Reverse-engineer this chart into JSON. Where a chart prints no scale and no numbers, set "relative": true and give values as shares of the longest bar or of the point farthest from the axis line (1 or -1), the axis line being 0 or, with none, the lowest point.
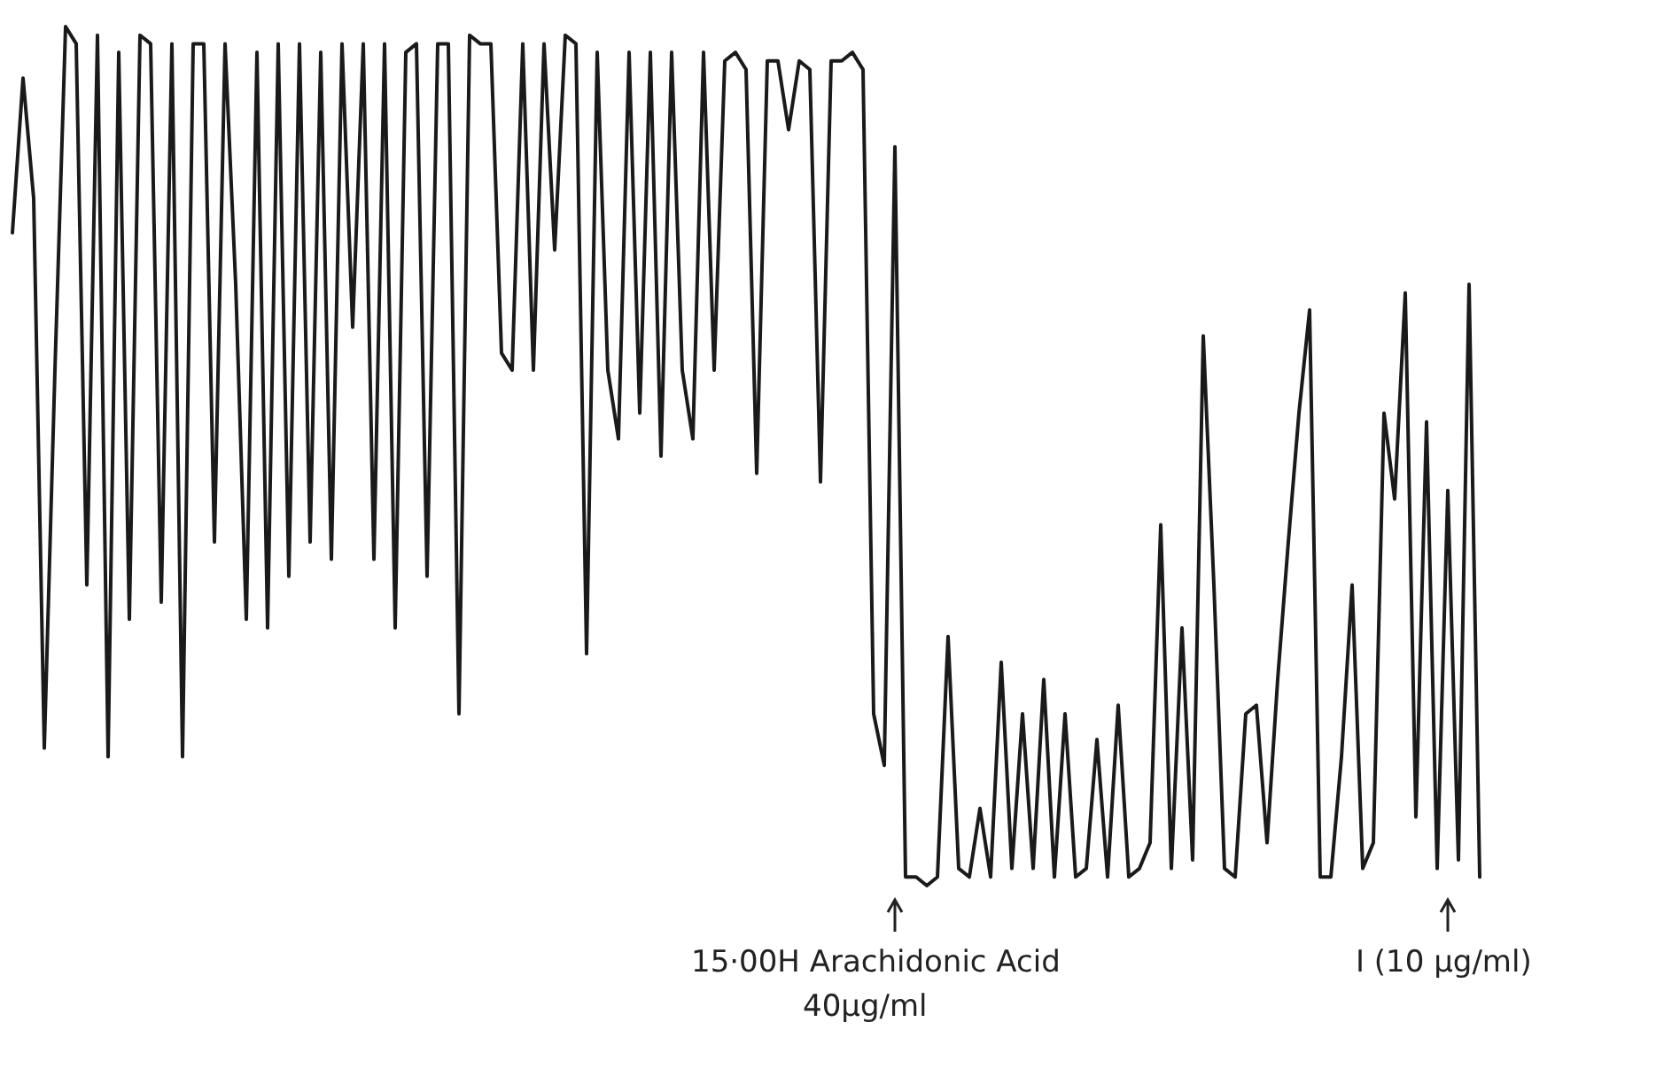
{
  "chart_data": {
    "type": "line",
    "relative": true,
    "color": "#1a1a1a",
    "line_style": "solid",
    "categories": [
      null,
      null,
      null,
      null,
      null,
      null,
      null,
      null,
      null,
      null,
      null,
      null,
      null,
      null,
      null,
      null,
      null,
      null,
      null,
      null,
      null,
      null,
      null,
      null,
      null,
      null,
      null,
      null,
      null,
      null,
      null,
      null,
      null,
      null,
      null,
      null,
      null,
      null,
      null,
      null,
      null,
      null,
      null,
      null,
      null,
      null,
      null,
      null,
      null,
      null,
      null,
      null,
      null,
      null,
      null,
      null,
      null,
      null,
      null,
      null,
      null,
      null,
      null,
      null,
      null,
      null,
      null,
      null,
      null,
      null,
      null,
      null,
      null,
      null,
      null,
      null,
      null,
      null,
      null,
      null,
      null,
      null,
      null,
      null,
      null,
      null,
      null,
      null,
      null,
      null,
      null,
      null,
      null,
      null,
      null,
      null,
      null,
      null,
      null,
      null,
      null,
      null,
      null,
      null,
      null,
      null,
      null,
      null,
      null,
      null,
      null,
      null,
      null,
      null,
      null,
      null,
      null,
      null,
      null,
      null,
      null,
      null,
      null,
      null,
      null,
      null,
      null,
      null,
      null,
      null,
      null,
      null,
      null,
      null,
      null,
      null,
      null,
      null,
      null
    ],
    "values": [
      0.76,
      0.94,
      0.8,
      0.16,
      0.6,
      1,
      0.98,
      0.35,
      0.99,
      0.15,
      0.97,
      0.31,
      0.99,
      0.98,
      0.33,
      0.98,
      0.15,
      0.98,
      0.98,
      0.4,
      0.98,
      0.7,
      0.31,
      0.97,
      0.3,
      0.98,
      0.36,
      0.98,
      0.4,
      0.97,
      0.38,
      0.98,
      0.65,
      0.98,
      0.38,
      0.98,
      0.3,
      0.97,
      0.98,
      0.36,
      0.98,
      0.98,
      0.2,
      0.99,
      0.98,
      0.98,
      0.62,
      0.6,
      0.98,
      0.6,
      0.98,
      0.74,
      0.99,
      0.98,
      0.27,
      0.97,
      0.6,
      0.52,
      0.97,
      0.55,
      0.97,
      0.5,
      0.97,
      0.6,
      0.52,
      0.97,
      0.6,
      0.96,
      0.97,
      0.95,
      0.48,
      0.96,
      0.96,
      0.88,
      0.96,
      0.95,
      0.47,
      0.96,
      0.96,
      0.97,
      0.95,
      0.2,
      0.14,
      0.86,
      0.01,
      0.01,
      0.0,
      0.01,
      0.29,
      0.02,
      0.01,
      0.09,
      0.01,
      0.26,
      0.02,
      0.2,
      0.02,
      0.24,
      0.01,
      0.2,
      0.01,
      0.02,
      0.17,
      0.01,
      0.21,
      0.01,
      0.02,
      0.05,
      0.42,
      0.02,
      0.3,
      0.03,
      0.64,
      0.35,
      0.02,
      0.01,
      0.2,
      0.21,
      0.05,
      0.24,
      0.4,
      0.55,
      0.67,
      0.01,
      0.01,
      0.15,
      0.35,
      0.02,
      0.05,
      0.55,
      0.45,
      0.69,
      0.08,
      0.54,
      0.02,
      0.46,
      0.03,
      0.7,
      0.01
    ],
    "annotations": [
      "15·00H Arachidonic Acid",
      "40µg/ml",
      "I (10 µg/ml)"
    ]
  }
}
